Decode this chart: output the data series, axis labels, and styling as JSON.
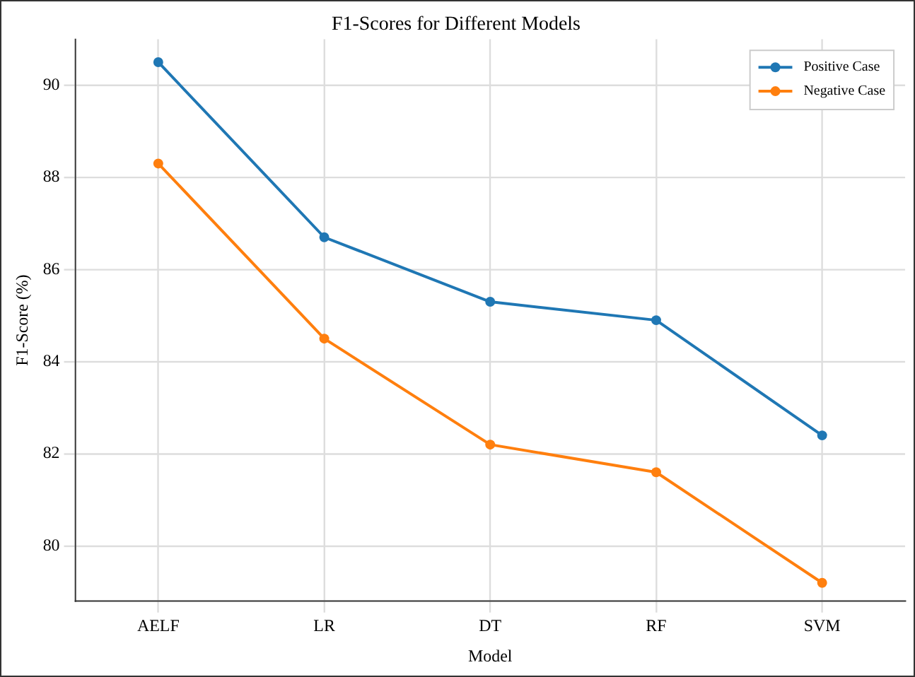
{
  "chart_data": {
    "type": "line",
    "title": "F1-Scores for Different Models",
    "xlabel": "Model",
    "ylabel": "F1-Score (%)",
    "categories": [
      "AELF",
      "LR",
      "DT",
      "RF",
      "SVM"
    ],
    "series": [
      {
        "name": "Positive Case",
        "color": "#1f77b4",
        "values": [
          90.5,
          86.7,
          85.3,
          84.9,
          82.4
        ]
      },
      {
        "name": "Negative Case",
        "color": "#ff7f0e",
        "values": [
          88.3,
          84.5,
          82.2,
          81.6,
          79.2
        ]
      }
    ],
    "ylim": [
      78.8,
      91.0
    ],
    "yticks": [
      80,
      82,
      84,
      86,
      88,
      90
    ],
    "grid": true,
    "legend": "top right",
    "marker": "circle",
    "line_style": "solid"
  }
}
